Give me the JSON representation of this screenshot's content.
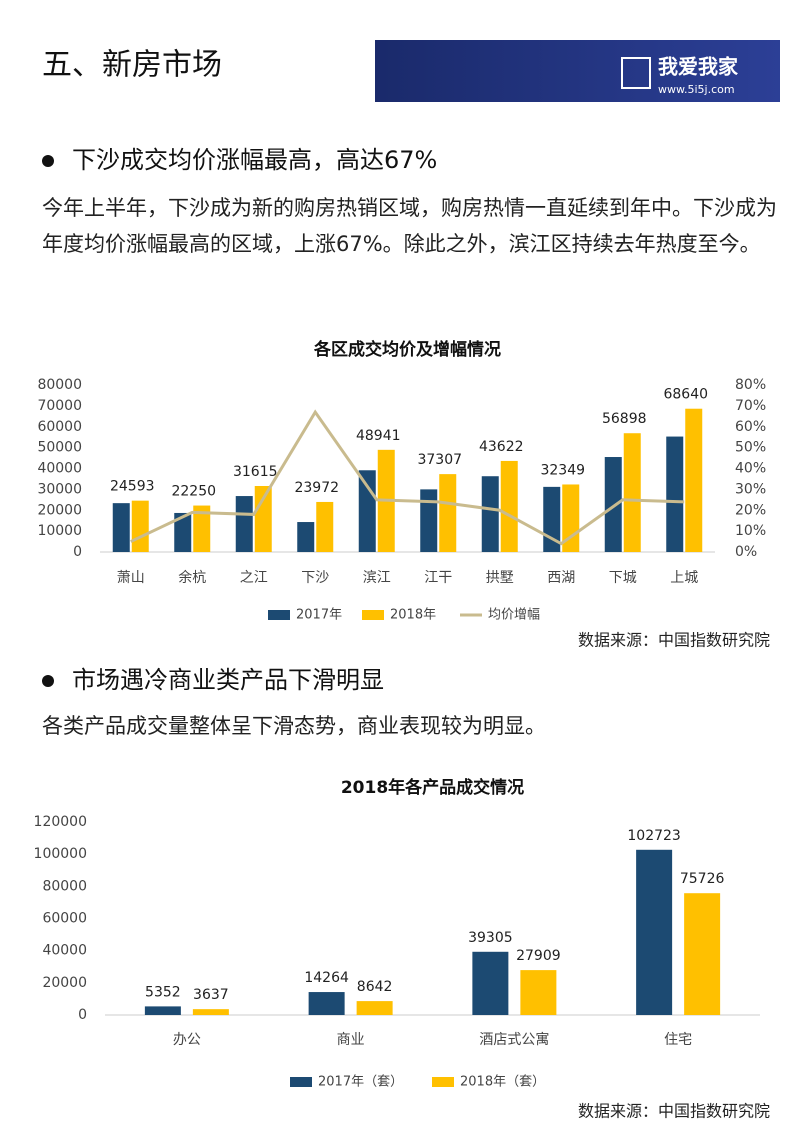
{
  "header": {
    "title": "五、新房市场",
    "logo": "我爱我家",
    "url": "www.5i5j.com"
  },
  "sections": [
    {
      "heading": "下沙成交均价涨幅最高，高达67%",
      "text": "今年上半年，下沙成为新的购房热销区域，购房热情一直延续到年中。下沙成为年度均价涨幅最高的区域，上涨67%。除此之外，滨江区持续去年热度至今。"
    },
    {
      "heading": "市场遇冷商业类产品下滑明显",
      "text": "各类产品成交量整体呈下滑态势，商业表现较为明显。"
    }
  ],
  "chart_data": [
    {
      "type": "bar",
      "title": "各区成交均价及增幅情况",
      "categories": [
        "萧山",
        "余杭",
        "之江",
        "下沙",
        "滨江",
        "江干",
        "拱墅",
        "西湖",
        "下城",
        "上城"
      ],
      "series": [
        {
          "name": "2017年",
          "color": "#1c4a72",
          "values": [
            23400,
            18700,
            26800,
            14354,
            39150,
            30000,
            36300,
            31200,
            45500,
            55300
          ]
        },
        {
          "name": "2018年",
          "color": "#ffc000",
          "values": [
            24593,
            22250,
            31615,
            23972,
            48941,
            37307,
            43622,
            32349,
            56898,
            68640
          ],
          "labels": true
        },
        {
          "name": "均价增幅",
          "color": "#c9bb8e",
          "type": "line",
          "axis": "y2",
          "values": [
            5,
            19,
            18,
            67,
            25,
            24,
            20,
            4,
            25,
            24
          ]
        }
      ],
      "ylim": [
        0,
        80000
      ],
      "yticks": [
        0,
        10000,
        20000,
        30000,
        40000,
        50000,
        60000,
        70000,
        80000
      ],
      "y2lim": [
        0,
        80
      ],
      "y2ticks": [
        {
          "value": 0,
          "label": "0%"
        },
        {
          "value": 10,
          "label": "10%"
        },
        {
          "value": 20,
          "label": "20%"
        },
        {
          "value": 30,
          "label": "30%"
        },
        {
          "value": 40,
          "label": "40%"
        },
        {
          "value": 50,
          "label": "50%"
        },
        {
          "value": 60,
          "label": "60%"
        },
        {
          "value": 70,
          "label": "70%"
        },
        {
          "value": 80,
          "label": "80%"
        }
      ],
      "source": "数据来源：中国指数研究院"
    },
    {
      "type": "bar",
      "title": "2018年各产品成交情况",
      "categories": [
        "办公",
        "商业",
        "酒店式公寓",
        "住宅"
      ],
      "series": [
        {
          "name": "2017年（套）",
          "color": "#1c4a72",
          "values": [
            5352,
            14264,
            39305,
            102723
          ],
          "labels": true
        },
        {
          "name": "2018年（套）",
          "color": "#ffc000",
          "values": [
            3637,
            8642,
            27909,
            75726
          ],
          "labels": true
        }
      ],
      "ylim": [
        0,
        120000
      ],
      "yticks": [
        0,
        20000,
        40000,
        60000,
        80000,
        100000,
        120000
      ],
      "source": "数据来源：中国指数研究院"
    }
  ]
}
